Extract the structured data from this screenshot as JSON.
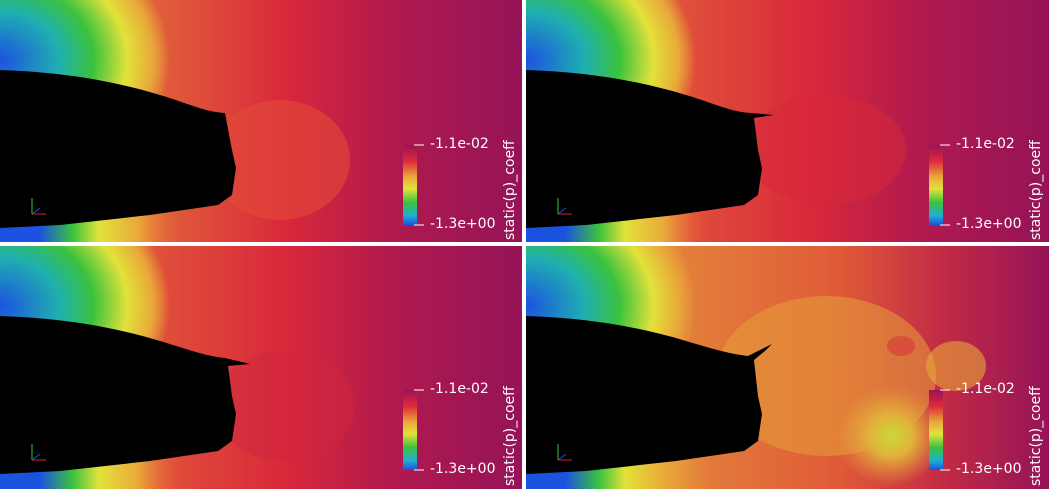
{
  "panels": [
    {
      "id": "top-left",
      "colorbar": {
        "title": "static(p)_coeff",
        "max_label": "-1.1e-02",
        "min_label": "-1.3e+00"
      }
    },
    {
      "id": "top-right",
      "colorbar": {
        "title": "static(p)_coeff",
        "max_label": "-1.1e-02",
        "min_label": "-1.3e+00"
      }
    },
    {
      "id": "bottom-left",
      "colorbar": {
        "title": "static(p)_coeff",
        "max_label": "-1.1e-02",
        "min_label": "-1.3e+00"
      }
    },
    {
      "id": "bottom-right",
      "colorbar": {
        "title": "static(p)_coeff",
        "max_label": "-1.1e-02",
        "min_label": "-1.3e+00"
      }
    }
  ],
  "colors": {
    "background_far": "#9a1359",
    "field_red": "#d62a2e",
    "field_orange": "#e8603a",
    "wake_yellow": "#e7b24a",
    "low_yellow": "#e0e23a",
    "low_green": "#3ac23e",
    "low_blue": "#1d5fe0",
    "body": "#000000"
  }
}
